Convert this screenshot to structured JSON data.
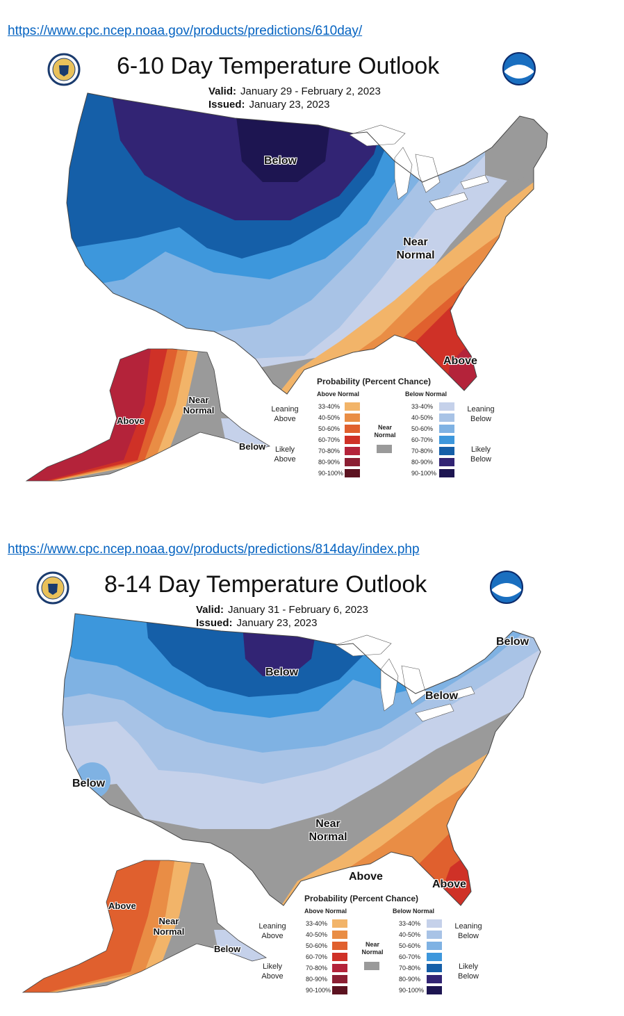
{
  "links": [
    "https://www.cpc.ncep.noaa.gov/products/predictions/610day/",
    "https://www.cpc.ncep.noaa.gov/products/predictions/814day/index.php"
  ],
  "panels": [
    {
      "title": "6-10 Day Temperature Outlook",
      "valid_label": "Valid:",
      "valid": "January 29 - February 2, 2023",
      "issued_label": "Issued:",
      "issued": "January 23, 2023",
      "labels": [
        "Below",
        "Near Normal",
        "Above",
        "Above",
        "Near Normal",
        "Below"
      ]
    },
    {
      "title": "8-14 Day Temperature Outlook",
      "valid_label": "Valid:",
      "valid": "January 31 - February 6, 2023",
      "issued_label": "Issued:",
      "issued": "January 23, 2023",
      "labels": [
        "Below",
        "Below",
        "Below",
        "Below",
        "Near Normal",
        "Above",
        "Above",
        "Above",
        "Near Normal",
        "Below"
      ]
    }
  ],
  "legend": {
    "title": "Probability (Percent Chance)",
    "above_header": "Above Normal",
    "below_header": "Below Normal",
    "near_normal": "Near Normal",
    "leaning_above": "Leaning Above",
    "likely_above": "Likely Above",
    "leaning_below": "Leaning Below",
    "likely_below": "Likely Below",
    "ranges": [
      "33-40%",
      "40-50%",
      "50-60%",
      "60-70%",
      "70-80%",
      "80-90%",
      "90-100%"
    ],
    "above_colors": [
      "#f2b469",
      "#e98d45",
      "#e0602e",
      "#cf3127",
      "#b4233a",
      "#8c1f33",
      "#5c1220"
    ],
    "below_colors": [
      "#c5d1ea",
      "#a8c3e6",
      "#7fb2e3",
      "#3d97dc",
      "#155fa8",
      "#322474",
      "#1d1551"
    ],
    "near_color": "#9a9a9a"
  },
  "colors": {
    "link": "#0563c1",
    "noaa_blue": "#1a6fc0",
    "noaa_dark": "#0b2a6b"
  }
}
